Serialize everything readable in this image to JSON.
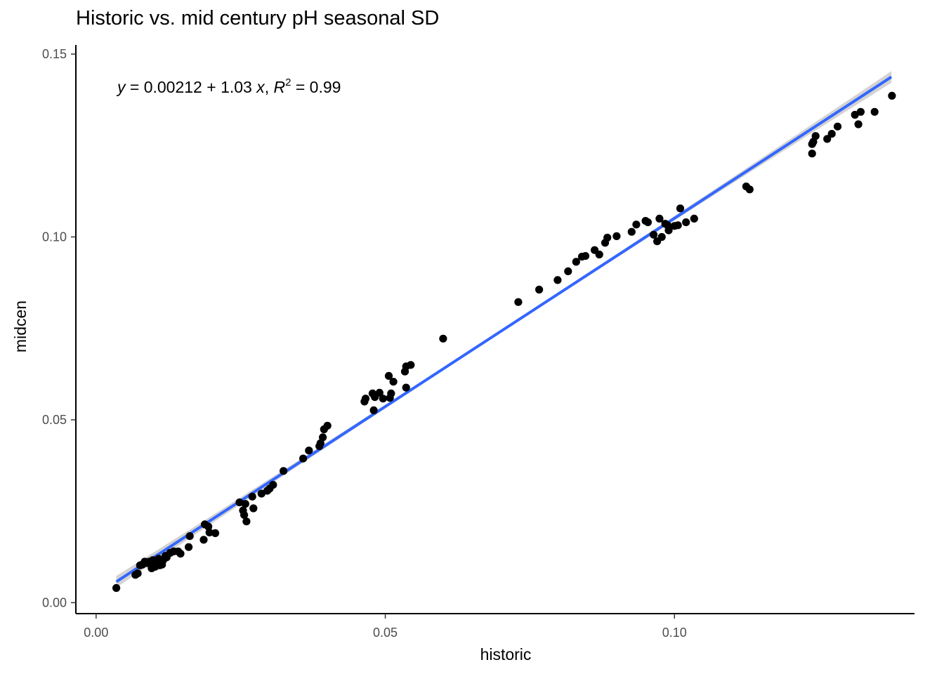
{
  "chart_data": {
    "type": "scatter",
    "title": "Historic vs. mid century pH seasonal SD",
    "xlabel": "historic",
    "ylabel": "midcen",
    "xlim": [
      -0.0035,
      0.1415
    ],
    "ylim": [
      -0.003,
      0.1525
    ],
    "x_ticks": [
      0.0,
      0.05,
      0.1
    ],
    "x_tick_labels": [
      "0.00",
      "0.05",
      "0.10"
    ],
    "y_ticks": [
      0.0,
      0.05,
      0.1,
      0.15
    ],
    "y_tick_labels": [
      "0.00",
      "0.05",
      "0.10",
      "0.15"
    ],
    "grid": false,
    "annotation": {
      "y_var": "y",
      "intercept_part": " = 0.00212 + 1.03 ",
      "x_var": "x",
      "separator": ", ",
      "r_var": "R",
      "r_exp": "2",
      "r_value": " = 0.99"
    },
    "fit_line": {
      "intercept": 0.00212,
      "slope": 1.03,
      "x_range": [
        0.0035,
        0.1375
      ],
      "color": "#3366FF",
      "band_color": "#C8C8C8"
    },
    "point_color": "#000000",
    "points": [
      [
        0.0035,
        0.004
      ],
      [
        0.0068,
        0.0076
      ],
      [
        0.0072,
        0.008
      ],
      [
        0.0076,
        0.0102
      ],
      [
        0.008,
        0.0104
      ],
      [
        0.0084,
        0.0112
      ],
      [
        0.0088,
        0.0108
      ],
      [
        0.0092,
        0.0112
      ],
      [
        0.0096,
        0.0094
      ],
      [
        0.0098,
        0.0116
      ],
      [
        0.0102,
        0.0098
      ],
      [
        0.0104,
        0.011
      ],
      [
        0.0108,
        0.012
      ],
      [
        0.011,
        0.0102
      ],
      [
        0.0114,
        0.0104
      ],
      [
        0.0116,
        0.0116
      ],
      [
        0.012,
        0.0128
      ],
      [
        0.0122,
        0.0124
      ],
      [
        0.0128,
        0.0136
      ],
      [
        0.0134,
        0.014
      ],
      [
        0.0142,
        0.014
      ],
      [
        0.0146,
        0.0134
      ],
      [
        0.016,
        0.0152
      ],
      [
        0.0162,
        0.0182
      ],
      [
        0.0186,
        0.0172
      ],
      [
        0.0188,
        0.0214
      ],
      [
        0.0194,
        0.0208
      ],
      [
        0.0196,
        0.0192
      ],
      [
        0.0206,
        0.019
      ],
      [
        0.0248,
        0.0274
      ],
      [
        0.0254,
        0.0252
      ],
      [
        0.0256,
        0.024
      ],
      [
        0.0258,
        0.027
      ],
      [
        0.026,
        0.0222
      ],
      [
        0.027,
        0.029
      ],
      [
        0.0272,
        0.0258
      ],
      [
        0.0286,
        0.0298
      ],
      [
        0.0296,
        0.0306
      ],
      [
        0.03,
        0.0312
      ],
      [
        0.0306,
        0.0322
      ],
      [
        0.0324,
        0.036
      ],
      [
        0.0358,
        0.0394
      ],
      [
        0.0368,
        0.0416
      ],
      [
        0.0386,
        0.0428
      ],
      [
        0.0388,
        0.0436
      ],
      [
        0.0392,
        0.0452
      ],
      [
        0.0394,
        0.0474
      ],
      [
        0.04,
        0.0484
      ],
      [
        0.0464,
        0.055
      ],
      [
        0.0466,
        0.0558
      ],
      [
        0.0478,
        0.0572
      ],
      [
        0.048,
        0.0526
      ],
      [
        0.0482,
        0.0562
      ],
      [
        0.049,
        0.0574
      ],
      [
        0.0496,
        0.0558
      ],
      [
        0.0506,
        0.062
      ],
      [
        0.0508,
        0.056
      ],
      [
        0.051,
        0.0572
      ],
      [
        0.0514,
        0.0604
      ],
      [
        0.0534,
        0.0632
      ],
      [
        0.0536,
        0.0588
      ],
      [
        0.0536,
        0.0646
      ],
      [
        0.0544,
        0.065
      ],
      [
        0.06,
        0.0722
      ],
      [
        0.073,
        0.0822
      ],
      [
        0.0766,
        0.0856
      ],
      [
        0.0798,
        0.0882
      ],
      [
        0.0816,
        0.0906
      ],
      [
        0.083,
        0.0932
      ],
      [
        0.084,
        0.0946
      ],
      [
        0.0846,
        0.0948
      ],
      [
        0.0862,
        0.0964
      ],
      [
        0.087,
        0.0952
      ],
      [
        0.088,
        0.0984
      ],
      [
        0.0884,
        0.0998
      ],
      [
        0.09,
        0.1002
      ],
      [
        0.0926,
        0.1014
      ],
      [
        0.0934,
        0.1034
      ],
      [
        0.095,
        0.1044
      ],
      [
        0.0954,
        0.104
      ],
      [
        0.0964,
        0.1006
      ],
      [
        0.097,
        0.0988
      ],
      [
        0.0974,
        0.105
      ],
      [
        0.0978,
        0.1
      ],
      [
        0.0984,
        0.1036
      ],
      [
        0.0988,
        0.1032
      ],
      [
        0.099,
        0.1018
      ],
      [
        0.1,
        0.103
      ],
      [
        0.1006,
        0.1032
      ],
      [
        0.101,
        0.1078
      ],
      [
        0.102,
        0.104
      ],
      [
        0.1034,
        0.105
      ],
      [
        0.1124,
        0.1138
      ],
      [
        0.113,
        0.113
      ],
      [
        0.1238,
        0.1228
      ],
      [
        0.1238,
        0.1254
      ],
      [
        0.124,
        0.126
      ],
      [
        0.1244,
        0.1276
      ],
      [
        0.1264,
        0.1268
      ],
      [
        0.1272,
        0.1282
      ],
      [
        0.1282,
        0.1302
      ],
      [
        0.1312,
        0.1334
      ],
      [
        0.1318,
        0.1308
      ],
      [
        0.1322,
        0.1342
      ],
      [
        0.1346,
        0.1342
      ],
      [
        0.1376,
        0.1386
      ]
    ]
  }
}
